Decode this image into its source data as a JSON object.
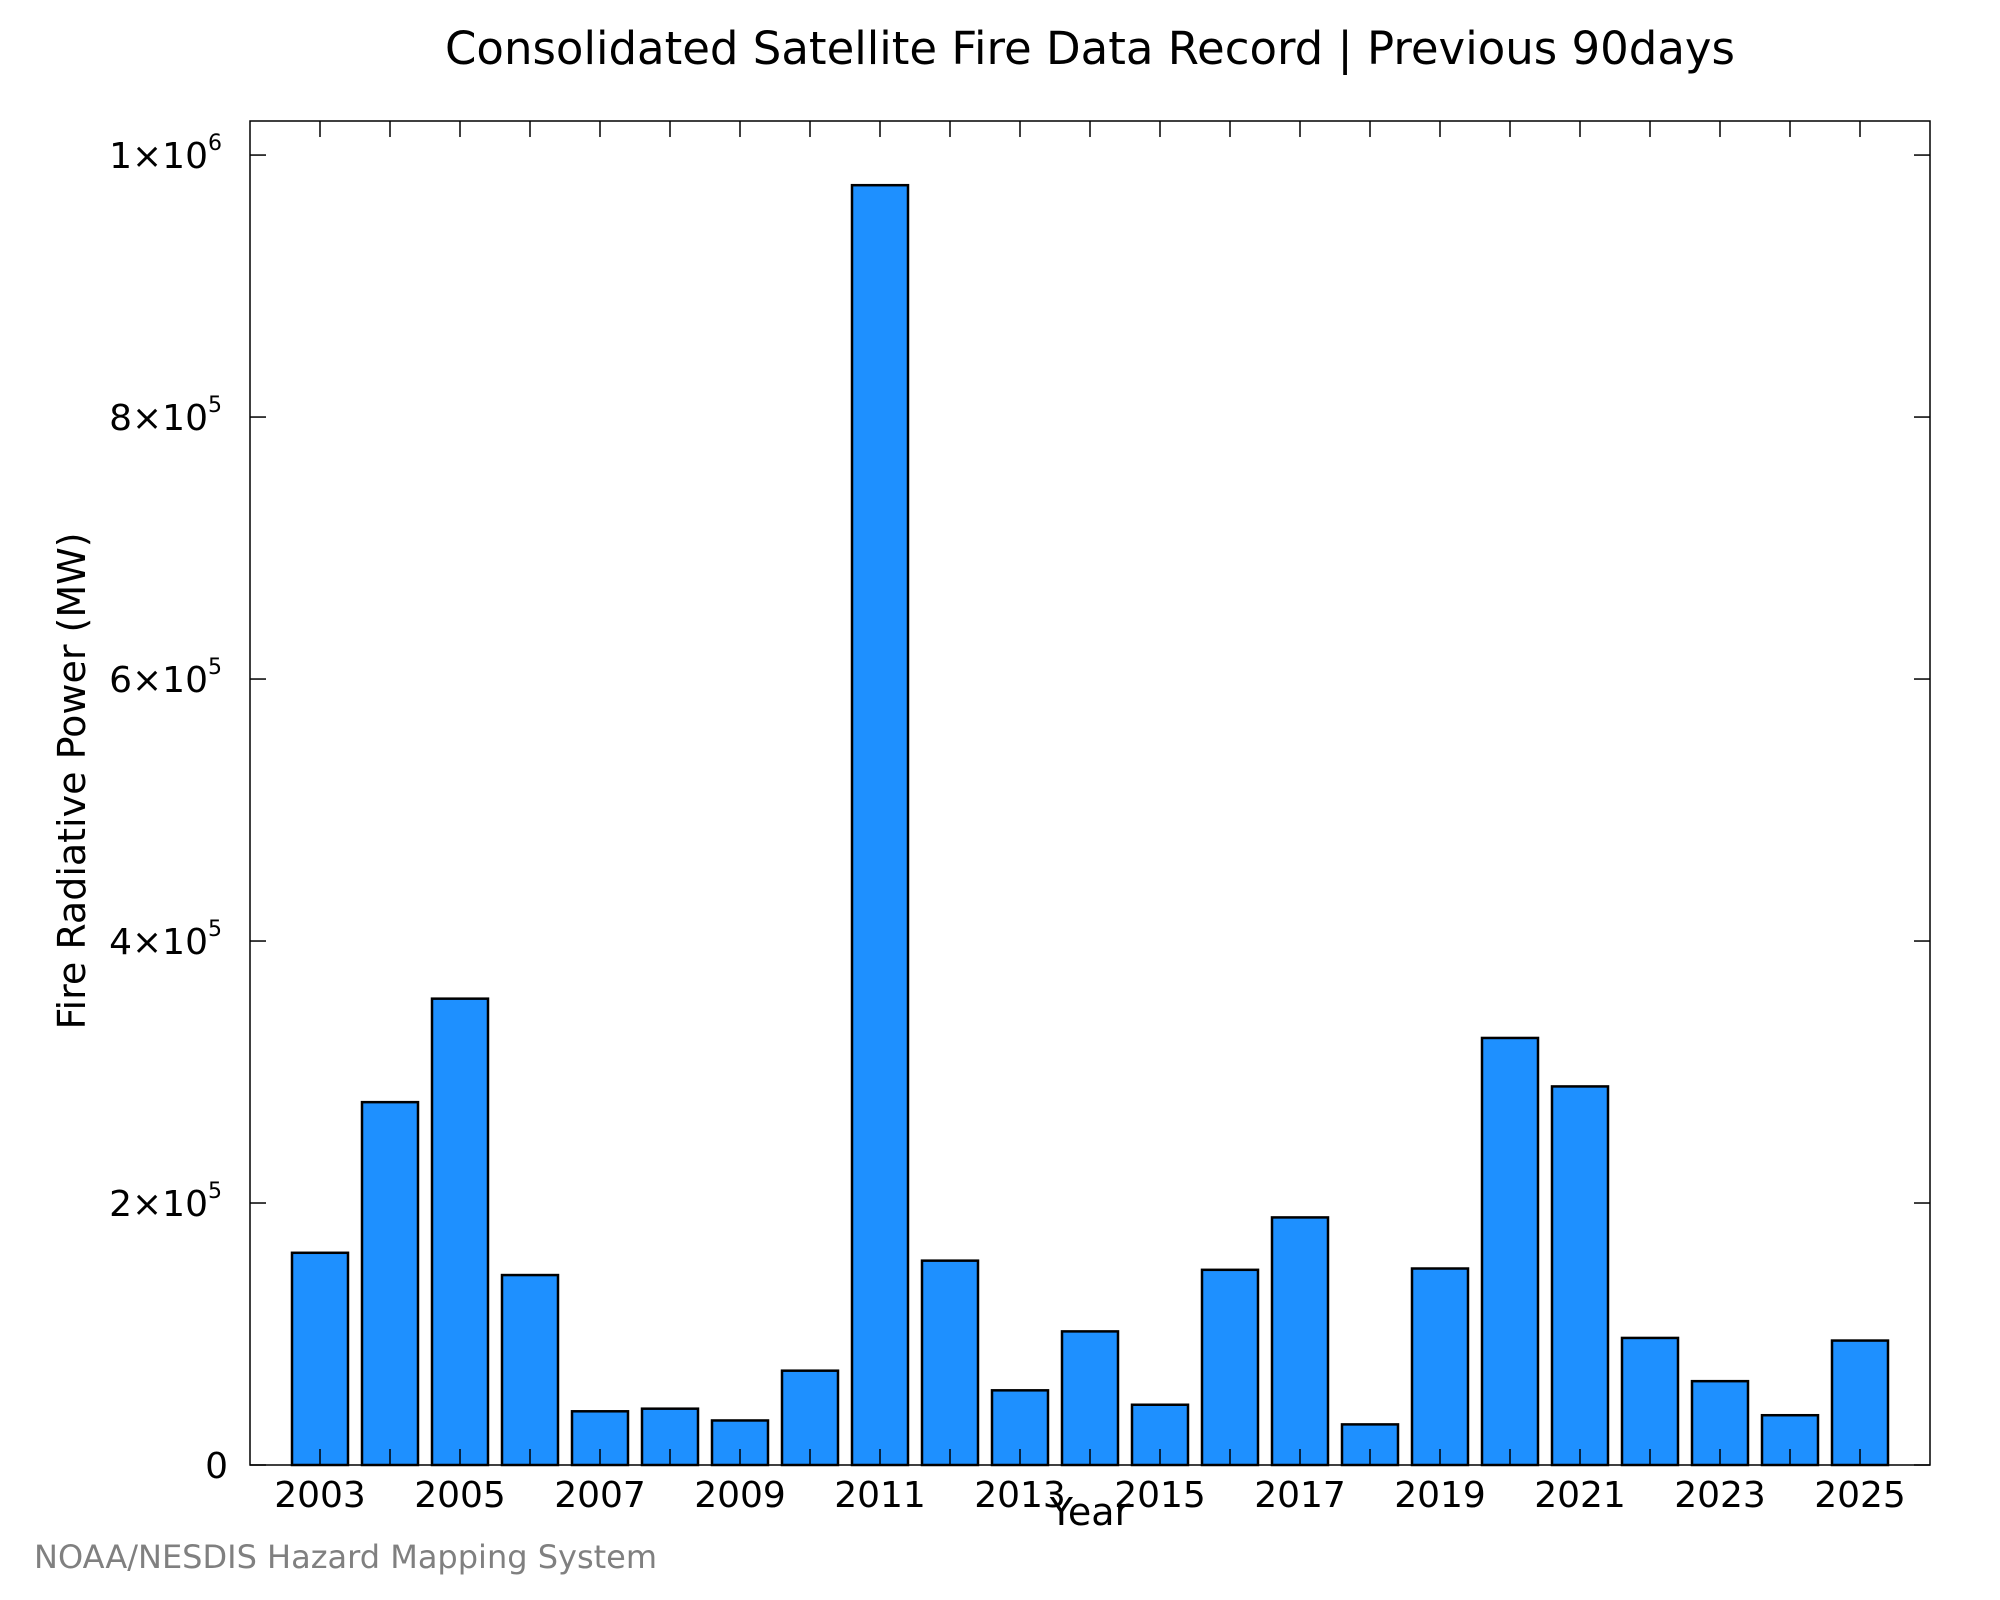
{
  "chart_data": {
    "type": "bar",
    "title": "Consolidated Satellite Fire Data Record | Previous 90days",
    "xlabel": "Year",
    "ylabel": "Fire Radiative Power (MW)",
    "categories": [
      2003,
      2004,
      2005,
      2006,
      2007,
      2008,
      2009,
      2010,
      2011,
      2012,
      2013,
      2014,
      2015,
      2016,
      2017,
      2018,
      2019,
      2020,
      2021,
      2022,
      2023,
      2024,
      2025
    ],
    "values": [
      162000,
      277000,
      356000,
      145000,
      41000,
      43000,
      34000,
      72000,
      977000,
      156000,
      57000,
      102000,
      46000,
      149000,
      189000,
      31000,
      150000,
      326000,
      289000,
      97000,
      64000,
      38000,
      95000
    ],
    "x_ticks": [
      "2003",
      "2005",
      "2007",
      "2009",
      "2011",
      "2013",
      "2015",
      "2017",
      "2019",
      "2021",
      "2023",
      "2025"
    ],
    "y_ticks": [
      {
        "value": 0,
        "mantissa": "0",
        "exponent": ""
      },
      {
        "value": 200000,
        "mantissa": "2×10",
        "exponent": "5"
      },
      {
        "value": 400000,
        "mantissa": "4×10",
        "exponent": "5"
      },
      {
        "value": 600000,
        "mantissa": "6×10",
        "exponent": "5"
      },
      {
        "value": 800000,
        "mantissa": "8×10",
        "exponent": "5"
      },
      {
        "value": 1000000,
        "mantissa": "1×10",
        "exponent": "6"
      }
    ],
    "ylim": [
      0,
      1026000
    ],
    "xlim": [
      2002,
      2026
    ],
    "bar_color": "#1e90ff",
    "bar_edge_color": "#000000",
    "grid": false,
    "legend": "none"
  },
  "credit": "NOAA/NESDIS Hazard Mapping System"
}
